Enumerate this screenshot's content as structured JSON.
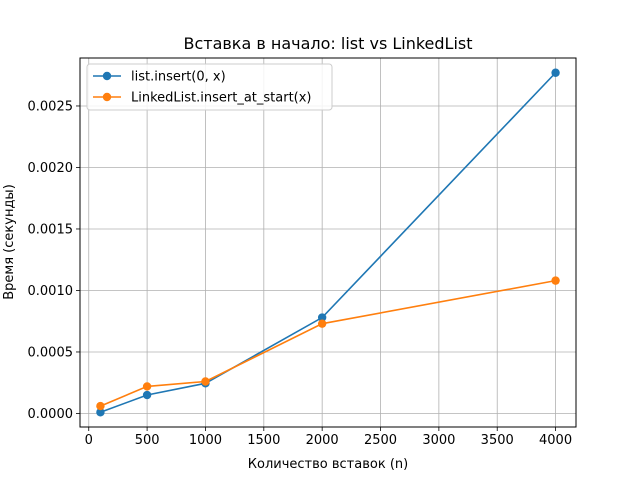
{
  "chart_data": {
    "type": "line",
    "title": "Вставка в начало: list vs LinkedList",
    "xlabel": "Количество вставок (n)",
    "ylabel": "Время (секунды)",
    "xlim": [
      -75,
      4175
    ],
    "ylim": [
      -0.00011,
      0.00289
    ],
    "xticks": [
      0,
      500,
      1000,
      1500,
      2000,
      2500,
      3000,
      3500,
      4000
    ],
    "xtick_labels": [
      "0",
      "500",
      "1000",
      "1500",
      "2000",
      "2500",
      "3000",
      "3500",
      "4000"
    ],
    "yticks": [
      0.0,
      0.0005,
      0.001,
      0.0015,
      0.002,
      0.0025
    ],
    "ytick_labels": [
      "0.0000",
      "0.0005",
      "0.0010",
      "0.0015",
      "0.0020",
      "0.0025"
    ],
    "grid": true,
    "legend_position": "upper-left",
    "x": [
      100,
      500,
      1000,
      2000,
      4000
    ],
    "series": [
      {
        "name": "list.insert(0, x)",
        "color": "#1f77b4",
        "values": [
          1e-05,
          0.00015,
          0.000245,
          0.00078,
          0.00277
        ]
      },
      {
        "name": "LinkedList.insert_at_start(x)",
        "color": "#ff7f0e",
        "values": [
          6e-05,
          0.00022,
          0.00026,
          0.00073,
          0.00108
        ]
      }
    ]
  }
}
